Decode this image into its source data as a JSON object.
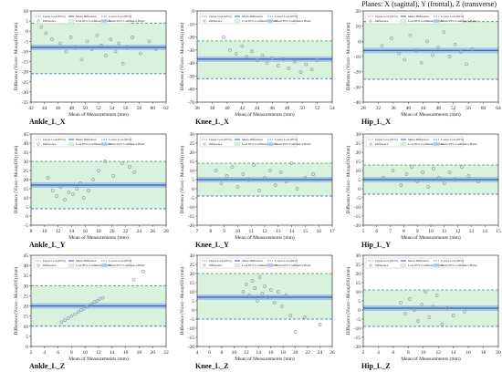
{
  "figure": {
    "planes_caption": "Planes: X (sagittal), Y (frontal), Z (transverse)"
  },
  "legend_labels": {
    "upper": "Upper LoA (95%)",
    "mean": "Mean Difference",
    "lower": "Lower LoA (95%)",
    "difference": "Difference",
    "loa_band": "LoA 95% Confidence Band",
    "mean_band": "Mean 95% Confidence Band"
  },
  "colors": {
    "loa_line": "#3a9a6a",
    "mean_line": "#2f5fa8",
    "lower_line": "#2f5fa8",
    "loa_band": "#d9f2de",
    "mean_band": "#a9c6ea",
    "points": "#8fa0b0"
  },
  "chart_data": [
    {
      "type": "scatter",
      "title": "Ankle_L_X",
      "xlabel": "Mean of Measurements (mm)",
      "ylabel": "Difference (Vicon - MocapOS) (mm)",
      "xlim": [
        42,
        62
      ],
      "ylim": [
        -35,
        10
      ],
      "xticks": [
        42,
        44,
        46,
        48,
        50,
        52,
        54,
        56,
        58,
        60,
        62
      ],
      "yticks": [
        -35,
        -30,
        -25,
        -20,
        -15,
        -10,
        -5,
        0,
        5,
        10
      ],
      "upper_loa": 4,
      "mean": -8,
      "lower_loa": -21,
      "x": [
        43.5,
        44.2,
        45.1,
        46.3,
        47.2,
        47.9,
        48.6,
        49.5,
        50.3,
        51.0,
        51.8,
        52.4,
        53.1,
        53.8,
        54.5,
        55.0,
        55.6,
        56.2,
        57.0,
        58.2,
        59.5,
        60.5
      ],
      "y": [
        2,
        -1,
        -4,
        -6,
        -10,
        -3,
        -8,
        -14,
        -5,
        -9,
        -2,
        -7,
        -12,
        -4,
        -10,
        -6,
        -16,
        -8,
        -3,
        -11,
        -5,
        -9
      ]
    },
    {
      "type": "scatter",
      "title": "Knee_L_X",
      "xlabel": "Mean of Measurements (mm)",
      "ylabel": "Difference (Vicon - MocapOS) (mm)",
      "xlim": [
        36,
        54
      ],
      "ylim": [
        -70,
        0
      ],
      "xticks": [
        36,
        38,
        40,
        42,
        44,
        46,
        48,
        50,
        52,
        54
      ],
      "yticks": [
        -70,
        -60,
        -50,
        -40,
        -30,
        -20,
        -10,
        0
      ],
      "upper_loa": -23,
      "mean": -37,
      "lower_loa": -52,
      "x": [
        39.5,
        40.4,
        41.2,
        42.0,
        42.6,
        43.3,
        44.0,
        44.7,
        45.3,
        46.0,
        46.8,
        47.5,
        48.2,
        49.0,
        49.8,
        50.5,
        51.3,
        52.0
      ],
      "y": [
        -20,
        -30,
        -33,
        -27,
        -35,
        -31,
        -38,
        -34,
        -40,
        -36,
        -42,
        -37,
        -44,
        -39,
        -47,
        -41,
        -45,
        -38
      ]
    },
    {
      "type": "scatter",
      "title": "Hip_L_X",
      "xlabel": "Mean of Measurements (mm)",
      "ylabel": "Difference (Vicon - MocapOS) (mm)",
      "xlim": [
        28,
        64
      ],
      "ylim": [
        -40,
        20
      ],
      "xticks": [
        28,
        32,
        36,
        40,
        44,
        48,
        52,
        56,
        60,
        64
      ],
      "yticks": [
        -40,
        -30,
        -20,
        -10,
        0,
        10,
        20
      ],
      "upper_loa": 13,
      "mean": -6,
      "lower_loa": -25,
      "x": [
        33.0,
        35.5,
        37.5,
        39.0,
        40.5,
        42.0,
        43.5,
        45.0,
        46.5,
        48.0,
        49.5,
        51.0,
        52.5,
        54.0,
        55.5,
        57.0
      ],
      "y": [
        -3,
        2,
        -8,
        -12,
        4,
        -6,
        -14,
        0,
        -9,
        -4,
        6,
        -10,
        -2,
        -7,
        -15,
        -5
      ]
    },
    {
      "type": "scatter",
      "title": "Ankle_L_Y",
      "xlabel": "Mean of Measurements (mm)",
      "ylabel": "Difference (Vicon - MocapOS) (mm)",
      "xlim": [
        8,
        28
      ],
      "ylim": [
        -5,
        45
      ],
      "xticks": [
        8,
        10,
        12,
        14,
        16,
        18,
        20,
        22,
        24,
        26,
        28
      ],
      "yticks": [
        -5,
        0,
        5,
        10,
        15,
        20,
        25,
        30,
        35,
        40,
        45
      ],
      "upper_loa": 30,
      "mean": 17,
      "lower_loa": 4,
      "x": [
        10.5,
        11.2,
        11.8,
        12.4,
        13.0,
        13.6,
        14.2,
        14.8,
        15.3,
        15.8,
        16.5,
        17.2,
        18.0,
        19.0,
        20.2,
        21.5,
        22.6,
        23.3
      ],
      "y": [
        21,
        14,
        11,
        16,
        9,
        13,
        12,
        15,
        18,
        10,
        14,
        20,
        25,
        30,
        22,
        29,
        27,
        24
      ]
    },
    {
      "type": "scatter",
      "title": "Knee_L_Y",
      "xlabel": "Mean of Measurements (mm)",
      "ylabel": "Difference (Vicon - MocapOS) (mm)",
      "xlim": [
        7,
        17
      ],
      "ylim": [
        -20,
        30
      ],
      "xticks": [
        7,
        8,
        9,
        10,
        11,
        12,
        13,
        14,
        15,
        16,
        17
      ],
      "yticks": [
        -20,
        -15,
        -10,
        -5,
        0,
        5,
        10,
        15,
        20,
        25,
        30
      ],
      "upper_loa": 14,
      "mean": 5,
      "lower_loa": -4,
      "x": [
        8.4,
        8.8,
        9.2,
        9.6,
        10.0,
        10.4,
        10.8,
        11.2,
        11.6,
        12.0,
        12.4,
        12.8,
        13.2,
        13.6,
        14.0,
        14.4,
        15.0,
        15.6
      ],
      "y": [
        10,
        3,
        7,
        12,
        1,
        8,
        5,
        13,
        -1,
        6,
        10,
        2,
        9,
        4,
        14,
        0,
        6,
        8
      ]
    },
    {
      "type": "scatter",
      "title": "Hip_L_Y",
      "xlabel": "Mean of Measurements (mm)",
      "ylabel": "Difference (Vicon - MocapOS) (mm)",
      "xlim": [
        5,
        15
      ],
      "ylim": [
        -20,
        30
      ],
      "xticks": [
        5,
        6,
        7,
        8,
        9,
        10,
        11,
        12,
        13,
        14,
        15
      ],
      "yticks": [
        -20,
        -15,
        -10,
        -5,
        0,
        5,
        10,
        15,
        20,
        25,
        30
      ],
      "upper_loa": 13,
      "mean": 5,
      "lower_loa": -3,
      "x": [
        6.5,
        7.2,
        7.8,
        8.2,
        8.6,
        9.0,
        9.4,
        9.8,
        10.2,
        10.6,
        11.0,
        11.4,
        11.8,
        12.3,
        12.8,
        13.5
      ],
      "y": [
        6,
        10,
        2,
        8,
        12,
        4,
        9,
        1,
        11,
        6,
        3,
        9,
        5,
        12,
        7,
        4
      ]
    },
    {
      "type": "scatter",
      "title": "Ankle_L_Z",
      "xlabel": "Mean of Measurements (mm)",
      "ylabel": "Difference (Vicon - MocapOS) (mm)",
      "xlim": [
        2,
        22
      ],
      "ylim": [
        0,
        45
      ],
      "xticks": [
        2,
        4,
        6,
        8,
        10,
        12,
        14,
        16,
        18,
        20,
        22
      ],
      "yticks": [
        0,
        5,
        10,
        15,
        20,
        25,
        30,
        35,
        40,
        45
      ],
      "upper_loa": 30,
      "mean": 20,
      "lower_loa": 10,
      "x": [
        6.5,
        7.0,
        7.5,
        8.0,
        8.5,
        9.0,
        9.4,
        9.8,
        10.2,
        10.6,
        11.0,
        11.4,
        11.8,
        12.2,
        12.6,
        17.2,
        18.6
      ],
      "y": [
        12,
        13,
        14,
        15,
        16,
        17,
        18,
        18.5,
        19.5,
        20,
        21,
        22,
        22.5,
        23.5,
        24,
        33,
        37
      ]
    },
    {
      "type": "scatter",
      "title": "Knee_L_Z",
      "xlabel": "Mean of Measurements (mm)",
      "ylabel": "Difference (Vicon - MocapOS) (mm)",
      "xlim": [
        4,
        26
      ],
      "ylim": [
        -20,
        30
      ],
      "xticks": [
        4,
        6,
        8,
        10,
        12,
        14,
        16,
        18,
        20,
        22,
        24,
        26
      ],
      "yticks": [
        -20,
        -15,
        -10,
        -5,
        0,
        5,
        10,
        15,
        20,
        25,
        30
      ],
      "upper_loa": 20,
      "mean": 7,
      "lower_loa": -5,
      "x": [
        11.5,
        12.0,
        12.5,
        13.0,
        13.4,
        13.8,
        14.2,
        14.6,
        15.0,
        15.5,
        16.0,
        16.6,
        17.2,
        17.8,
        18.5,
        19.2,
        20.0,
        21.5,
        24.0
      ],
      "y": [
        10,
        14,
        8,
        16,
        12,
        5,
        18,
        9,
        13,
        7,
        11,
        4,
        10,
        2,
        8,
        -3,
        -12,
        -4,
        -8
      ]
    },
    {
      "type": "scatter",
      "title": "Hip_L_Z",
      "xlabel": "Mean of Measurements (mm)",
      "ylabel": "Difference (Vicon - MocapOS) (mm)",
      "xlim": [
        2,
        20
      ],
      "ylim": [
        -20,
        30
      ],
      "xticks": [
        2,
        4,
        6,
        8,
        10,
        12,
        14,
        16,
        18,
        20
      ],
      "yticks": [
        -20,
        -15,
        -10,
        -5,
        0,
        5,
        10,
        15,
        20,
        25,
        30
      ],
      "upper_loa": 11,
      "mean": 1,
      "lower_loa": -9,
      "x": [
        7.0,
        7.6,
        8.2,
        8.8,
        9.3,
        9.8,
        10.3,
        10.8,
        11.3,
        11.8,
        12.5,
        13.2,
        14.0,
        15.5
      ],
      "y": [
        4,
        -2,
        6,
        0,
        -6,
        3,
        10,
        -4,
        2,
        8,
        -8,
        1,
        -3,
        -1
      ]
    }
  ]
}
